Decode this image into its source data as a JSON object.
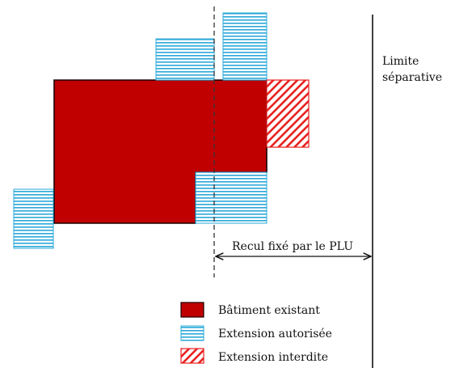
{
  "colors": {
    "building": "#c00000",
    "allowed": "#2aa8d8",
    "forbidden": "#e82020",
    "line": "#111111"
  },
  "labels": {
    "boundary_line1": "Limite",
    "boundary_line2": "séparative",
    "setback": "Recul fixé par le PLU"
  },
  "legend": {
    "existing": "Bâtiment existant",
    "allowed": "Extension autorisée",
    "forbidden": "Extension interdite"
  }
}
